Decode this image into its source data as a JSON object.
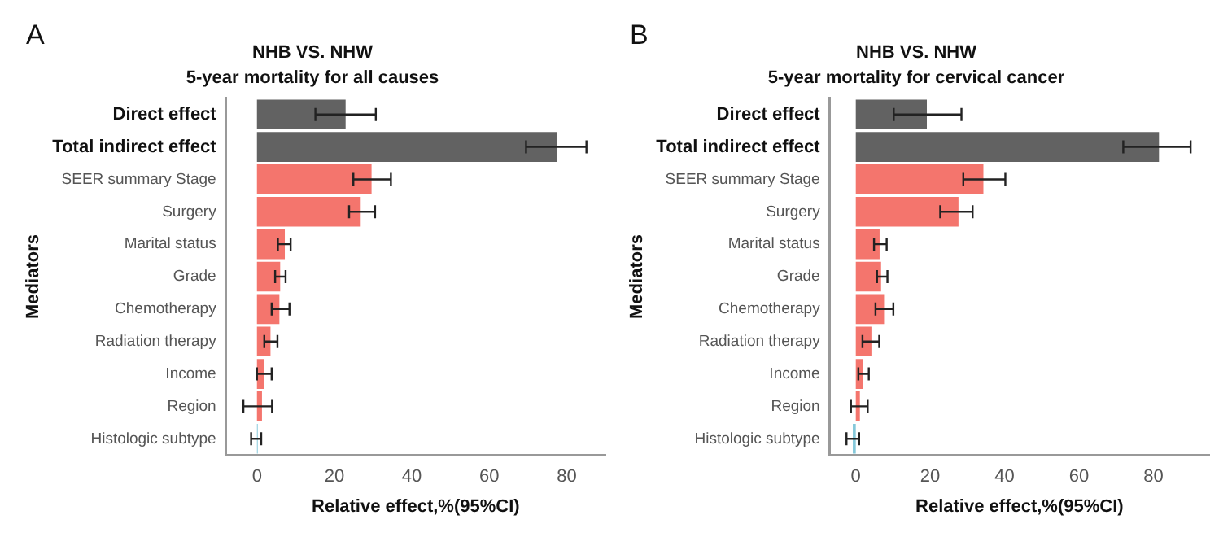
{
  "chart_data": [
    {
      "type": "bar",
      "orientation": "horizontal",
      "title": "NHB VS. NHW",
      "subtitle": "5-year mortality for all causes",
      "xlabel": "Relative effect,%(95%CI)",
      "ylabel": "Mediators",
      "annotations": [
        "A"
      ],
      "categories": [
        "Direct effect",
        "Total indirect effect",
        "SEER summary Stage",
        "Surgery",
        "Marital status",
        "Grade",
        "Chemotherapy",
        "Radiation therapy",
        "Income",
        "Region",
        "Histologic subtype"
      ],
      "values": [
        22.9,
        77.5,
        29.6,
        26.8,
        7.2,
        6.0,
        5.8,
        3.5,
        1.9,
        1.3,
        0.2
      ],
      "colors": [
        "#626262",
        "#626262",
        "#f4756d",
        "#f4756d",
        "#f4756d",
        "#f4756d",
        "#f4756d",
        "#f4756d",
        "#f4756d",
        "#f4756d",
        "#84c8da"
      ],
      "errors": [
        [
          15.1,
          30.7
        ],
        [
          69.5,
          85.1
        ],
        [
          24.9,
          34.6
        ],
        [
          23.8,
          30.5
        ],
        [
          5.4,
          8.7
        ],
        [
          4.7,
          7.4
        ],
        [
          3.8,
          8.4
        ],
        [
          1.9,
          5.3
        ],
        [
          0.0,
          3.8
        ],
        [
          -3.5,
          3.9
        ],
        [
          -1.5,
          1.1
        ]
      ],
      "xlim": [
        -8,
        90
      ],
      "xticks": [
        0,
        20,
        40,
        60,
        80
      ],
      "grid": false
    },
    {
      "type": "bar",
      "orientation": "horizontal",
      "title": "NHB VS. NHW",
      "subtitle": "5-year mortality for cervical cancer",
      "xlabel": "Relative effect,%(95%CI)",
      "ylabel": "Mediators",
      "annotations": [
        "B"
      ],
      "categories": [
        "Direct effect",
        "Total indirect effect",
        "SEER summary Stage",
        "Surgery",
        "Marital status",
        "Grade",
        "Chemotherapy",
        "Radiation therapy",
        "Income",
        "Region",
        "Histologic subtype"
      ],
      "values": [
        19.1,
        81.5,
        34.3,
        27.6,
        6.4,
        6.8,
        7.6,
        4.2,
        2.0,
        1.1,
        -0.8
      ],
      "colors": [
        "#626262",
        "#626262",
        "#f4756d",
        "#f4756d",
        "#f4756d",
        "#f4756d",
        "#f4756d",
        "#f4756d",
        "#f4756d",
        "#f4756d",
        "#84c8da"
      ],
      "errors": [
        [
          10.2,
          28.4
        ],
        [
          71.9,
          90.0
        ],
        [
          28.9,
          40.2
        ],
        [
          22.7,
          31.4
        ],
        [
          4.9,
          8.3
        ],
        [
          5.7,
          8.5
        ],
        [
          5.3,
          10.1
        ],
        [
          1.8,
          6.3
        ],
        [
          0.7,
          3.5
        ],
        [
          -1.3,
          3.2
        ],
        [
          -2.5,
          0.9
        ]
      ],
      "xlim": [
        -7,
        95
      ],
      "xticks": [
        0,
        20,
        40,
        60,
        80
      ],
      "grid": false
    }
  ]
}
